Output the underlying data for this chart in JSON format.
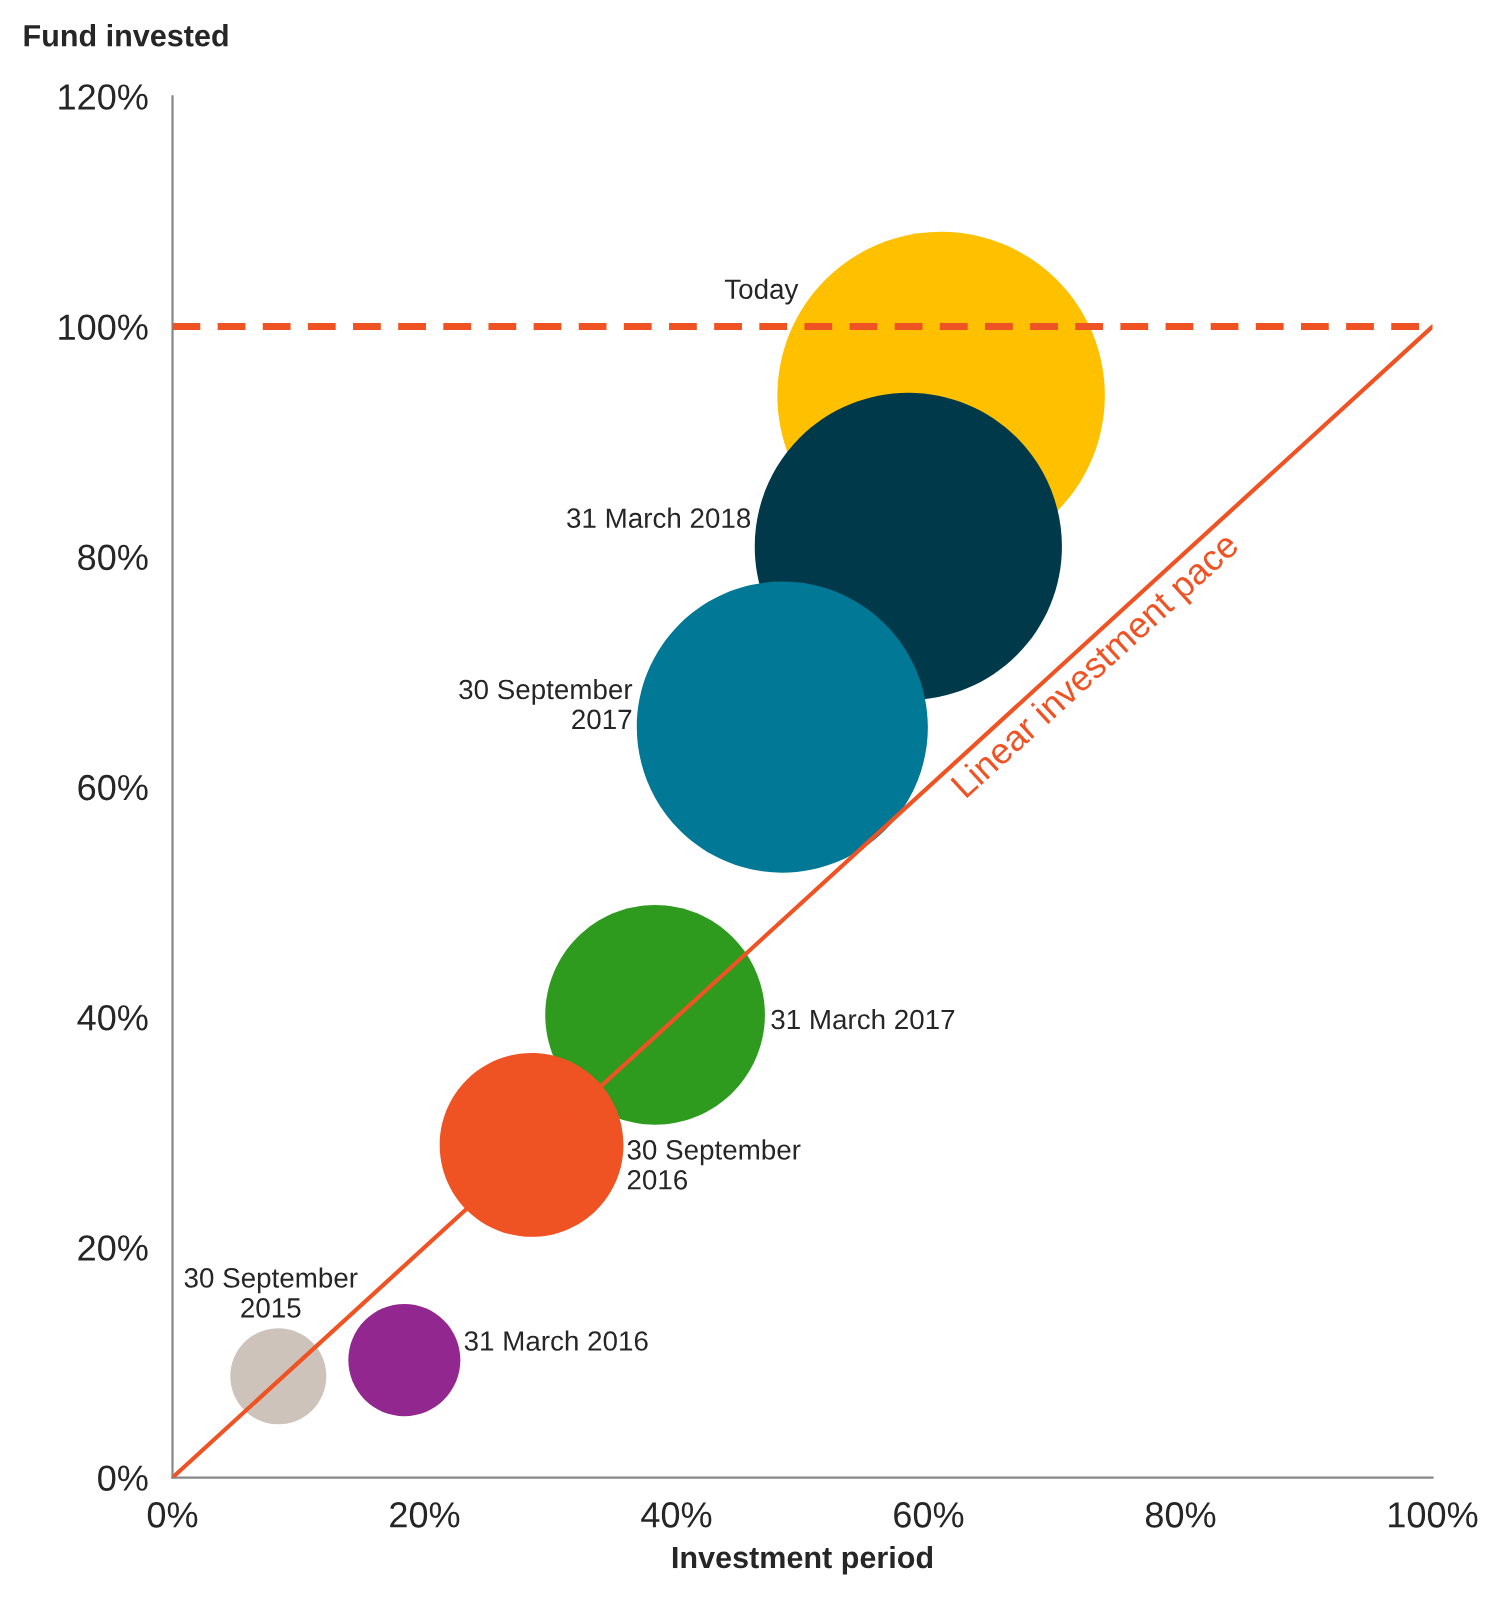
{
  "chart_data": {
    "type": "bubble",
    "xlabel": "Investment period",
    "ylabel": "Fund invested",
    "xlim": [
      0,
      100
    ],
    "ylim": [
      0,
      120
    ],
    "xticks": [
      {
        "value": 0,
        "label": "0%"
      },
      {
        "value": 20,
        "label": "20%"
      },
      {
        "value": 40,
        "label": "40%"
      },
      {
        "value": 60,
        "label": "60%"
      },
      {
        "value": 80,
        "label": "80%"
      },
      {
        "value": 100,
        "label": "100%"
      }
    ],
    "yticks": [
      {
        "value": 0,
        "label": "0%"
      },
      {
        "value": 20,
        "label": "20%"
      },
      {
        "value": 40,
        "label": "40%"
      },
      {
        "value": 60,
        "label": "60%"
      },
      {
        "value": 80,
        "label": "80%"
      },
      {
        "value": 100,
        "label": "100%"
      },
      {
        "value": 120,
        "label": "120%"
      }
    ],
    "grid": false,
    "legend": false,
    "series": [
      {
        "x": [
          8.4,
          18.4,
          28.5,
          38.3,
          48.4,
          58.4,
          61
        ],
        "values": [
          8.8,
          10.2,
          28.9,
          40.2,
          65.2,
          80.9,
          94
        ],
        "sizes": [
          0.086,
          0.117,
          0.315,
          0.45,
          0.79,
          0.88,
          1
        ],
        "colors": [
          "#cdc3ba",
          "#92278f",
          "#f05323",
          "#2e9b1f",
          "#007896",
          "#003a4a",
          "#ffc000"
        ],
        "value_labels": [
          "30 September\n2015",
          "31 March 2016",
          "30 September\n2016",
          "31 March 2017",
          "30 September\n2017",
          "31 March 2018",
          "Today"
        ]
      },
      {
        "name": "Linear investment pace",
        "type": "line",
        "x": [
          0,
          100
        ],
        "values": [
          0,
          100
        ],
        "color": "#f05323",
        "line_style": "solid"
      }
    ],
    "ref_lines": [
      {
        "axis": "y",
        "value": 100,
        "color": "#f05323",
        "line_style": "dashed"
      }
    ]
  }
}
